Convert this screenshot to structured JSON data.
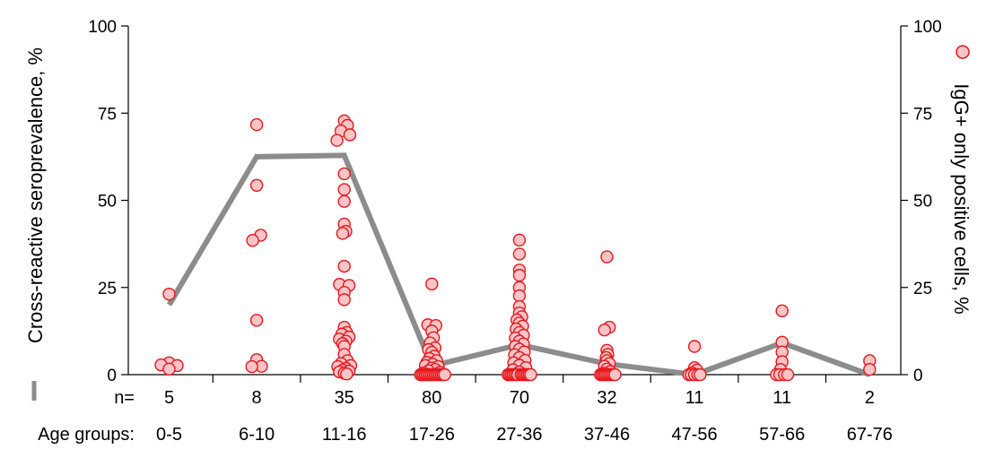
{
  "chart_data": {
    "type": "scatter",
    "y_left_label": "Cross-reactive seroprevalence, %",
    "y_right_label": "IgG+ only positive cells, %",
    "ylim": [
      0,
      100
    ],
    "yticks": [
      0,
      25,
      50,
      75,
      100
    ],
    "n_row_label": "n=",
    "age_row_label": "Age groups:",
    "categories": [
      "0-5",
      "6-10",
      "11-16",
      "17-26",
      "27-36",
      "37-46",
      "47-56",
      "57-66",
      "67-76"
    ],
    "counts": [
      "5",
      "8",
      "35",
      "80",
      "70",
      "32",
      "11",
      "11",
      "2"
    ],
    "series": [
      {
        "name": "Cross-reactive seroprevalence",
        "kind": "line",
        "axis": "left",
        "values": [
          20,
          62.5,
          62.9,
          2.5,
          8.6,
          3.1,
          0,
          9.1,
          0
        ]
      },
      {
        "name": "IgG+ only positive cells",
        "kind": "scatter",
        "axis": "right",
        "points": [
          [
            [
              23.1,
              0
            ],
            [
              3.4,
              0
            ],
            [
              2.8,
              -1
            ],
            [
              2.6,
              1
            ],
            [
              1.6,
              0
            ]
          ],
          [
            [
              71.7,
              0
            ],
            [
              54.3,
              0
            ],
            [
              40.0,
              0.5
            ],
            [
              38.5,
              -0.5
            ],
            [
              15.6,
              0
            ],
            [
              4.3,
              0
            ],
            [
              2.4,
              0.6
            ],
            [
              2.3,
              -0.6
            ]
          ],
          [
            [
              72.8,
              0
            ],
            [
              71.5,
              0.4
            ],
            [
              69.9,
              -0.4
            ],
            [
              68.8,
              0.7
            ],
            [
              67.2,
              -0.9
            ],
            [
              57.6,
              0
            ],
            [
              53.1,
              0
            ],
            [
              49.7,
              0
            ],
            [
              43.2,
              0
            ],
            [
              41.1,
              0.2
            ],
            [
              40.5,
              -0.2
            ],
            [
              31.1,
              0
            ],
            [
              25.9,
              -0.6
            ],
            [
              25.6,
              0.6
            ],
            [
              23.6,
              0
            ],
            [
              21.5,
              0
            ],
            [
              13.6,
              0
            ],
            [
              12.1,
              0.3
            ],
            [
              11.6,
              -0.3
            ],
            [
              10.8,
              0.6
            ],
            [
              10.2,
              -0.6
            ],
            [
              9.6,
              0.2
            ],
            [
              8.9,
              -0.2
            ],
            [
              8.1,
              0
            ],
            [
              5.8,
              0
            ],
            [
              4.0,
              0.4
            ],
            [
              3.2,
              -0.4
            ],
            [
              2.6,
              0.8
            ],
            [
              2.3,
              -0.8
            ],
            [
              1.8,
              0.2
            ],
            [
              1.3,
              -0.2
            ],
            [
              1.0,
              0.6
            ],
            [
              0.8,
              -0.6
            ],
            [
              0.4,
              0
            ],
            [
              0.2,
              0.3
            ]
          ],
          [
            [
              26.0,
              0
            ],
            [
              14.3,
              -0.5
            ],
            [
              14.1,
              0.5
            ],
            [
              12.5,
              0
            ],
            [
              10.6,
              0.2
            ],
            [
              9.1,
              -0.2
            ],
            [
              7.7,
              0.4
            ],
            [
              7.2,
              -0.4
            ],
            [
              6.4,
              0
            ],
            [
              5.3,
              0.3
            ],
            [
              4.6,
              -0.3
            ],
            [
              4.0,
              0.6
            ],
            [
              3.5,
              -0.6
            ],
            [
              3.0,
              0.1
            ],
            [
              2.6,
              -0.8
            ],
            [
              2.3,
              0.8
            ],
            [
              1.9,
              0
            ],
            [
              1.5,
              0.4
            ],
            [
              1.1,
              -0.4
            ],
            [
              0.7,
              1.0
            ],
            [
              0.5,
              -1.0
            ],
            [
              0,
              -1.4
            ],
            [
              0,
              -1.2
            ],
            [
              0,
              -1.0
            ],
            [
              0,
              -0.8
            ],
            [
              0,
              -0.6
            ],
            [
              0,
              -0.4
            ],
            [
              0,
              -0.2
            ],
            [
              0,
              0
            ],
            [
              0,
              0.2
            ],
            [
              0,
              0.4
            ],
            [
              0,
              0.6
            ],
            [
              0,
              0.8
            ],
            [
              0,
              1.0
            ],
            [
              0,
              1.2
            ],
            [
              0,
              1.4
            ],
            [
              0,
              1.6
            ]
          ],
          [
            [
              38.6,
              0
            ],
            [
              34.6,
              0
            ],
            [
              30.0,
              0
            ],
            [
              28.5,
              0
            ],
            [
              25.0,
              0
            ],
            [
              22.6,
              0
            ],
            [
              19.5,
              0
            ],
            [
              17.7,
              0
            ],
            [
              16.6,
              0.3
            ],
            [
              15.7,
              -0.3
            ],
            [
              14.8,
              0
            ],
            [
              13.9,
              0.4
            ],
            [
              13.1,
              -0.4
            ],
            [
              12.1,
              0
            ],
            [
              11.3,
              0.5
            ],
            [
              10.5,
              -0.5
            ],
            [
              9.6,
              0
            ],
            [
              8.8,
              0.5
            ],
            [
              8.1,
              -0.5
            ],
            [
              7.3,
              0
            ],
            [
              6.5,
              0.6
            ],
            [
              5.7,
              -0.6
            ],
            [
              4.9,
              0
            ],
            [
              4.1,
              0.7
            ],
            [
              3.4,
              -0.7
            ],
            [
              2.7,
              0
            ],
            [
              2.0,
              0.8
            ],
            [
              1.4,
              -0.8
            ],
            [
              0.8,
              0
            ],
            [
              0,
              -1.4
            ],
            [
              0,
              -1.2
            ],
            [
              0,
              -1.0
            ],
            [
              0,
              -0.8
            ],
            [
              0,
              -0.6
            ],
            [
              0,
              -0.4
            ],
            [
              0,
              -0.2
            ],
            [
              0,
              0.2
            ],
            [
              0,
              0.4
            ],
            [
              0,
              0.6
            ],
            [
              0,
              0.8
            ],
            [
              0,
              1.0
            ],
            [
              0,
              1.2
            ],
            [
              0,
              1.4
            ]
          ],
          [
            [
              33.8,
              0
            ],
            [
              13.6,
              0.3
            ],
            [
              12.8,
              -0.3
            ],
            [
              7.0,
              0
            ],
            [
              5.8,
              0.1
            ],
            [
              4.9,
              -0.1
            ],
            [
              4.0,
              0
            ],
            [
              3.2,
              0.3
            ],
            [
              2.4,
              -0.3
            ],
            [
              1.6,
              0
            ],
            [
              0.9,
              0.4
            ],
            [
              0.4,
              -0.4
            ],
            [
              0,
              -0.8
            ],
            [
              0,
              -0.6
            ],
            [
              0,
              -0.4
            ],
            [
              0,
              -0.2
            ],
            [
              0,
              0
            ],
            [
              0,
              0.2
            ],
            [
              0,
              0.4
            ],
            [
              0,
              0.6
            ],
            [
              0,
              0.8
            ],
            [
              0,
              1.0
            ]
          ],
          [
            [
              8.1,
              0
            ],
            [
              2.0,
              0
            ],
            [
              1.3,
              0.3
            ],
            [
              0.5,
              -0.3
            ],
            [
              0,
              -0.7
            ],
            [
              0,
              -0.4
            ],
            [
              0,
              0
            ],
            [
              0,
              0.4
            ],
            [
              0,
              0.7
            ]
          ],
          [
            [
              18.3,
              0
            ],
            [
              9.3,
              0
            ],
            [
              6.5,
              0
            ],
            [
              3.7,
              0
            ],
            [
              1.5,
              -0.2
            ],
            [
              0,
              -0.7
            ],
            [
              0,
              -0.3
            ],
            [
              0,
              0.3
            ],
            [
              0,
              0.7
            ]
          ],
          [
            [
              4.0,
              0
            ],
            [
              1.5,
              0
            ]
          ]
        ]
      }
    ],
    "line_color": "#8c8c8c",
    "point_fill": "#fbc5c8",
    "point_stroke": "#e8161c"
  }
}
